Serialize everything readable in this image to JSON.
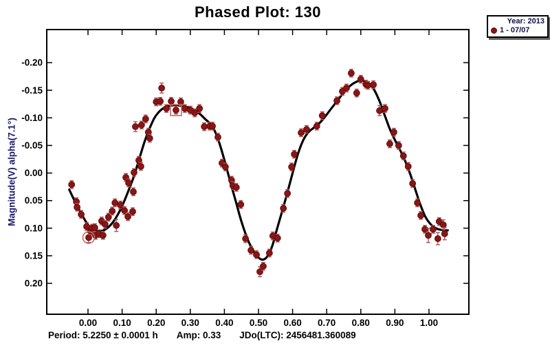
{
  "title": "Phased Plot: 130",
  "legend": {
    "year_label": "Year: 2013",
    "session_label": "1 - 07/07",
    "marker_color": "#8b1515"
  },
  "stats": {
    "period": "Period: 5.2250 ± 0.0001 h",
    "amp": "Amp: 0.33",
    "jdo": "JDo(LTC): 2456481.360089"
  },
  "colors": {
    "point_fill": "#8b1515",
    "point_edge": "#5f0b0b",
    "errorbar": "#a85454",
    "curve": "#000000",
    "frame": "#000000",
    "axis_title_navy": "#191970",
    "marker_annotation": "#c46a6a"
  },
  "chart_data": {
    "type": "scatter",
    "title": "Phased Plot: 130",
    "xlabel": "",
    "ylabel": "Magnitude(V) alpha(7.1°)",
    "x_ticks": [
      "0.00",
      "0.10",
      "0.20",
      "0.30",
      "0.40",
      "0.50",
      "0.60",
      "0.70",
      "0.80",
      "0.90",
      "1.00"
    ],
    "y_ticks": [
      "-0.20",
      "-0.15",
      "-0.10",
      "-0.05",
      "0.00",
      "0.05",
      "0.10",
      "0.15",
      "0.20"
    ],
    "xlim": [
      -0.121,
      1.117
    ],
    "ylim": [
      0.256,
      -0.26
    ],
    "y_axis_inverted": true,
    "grid": false,
    "legend_position": "top-right",
    "series": [
      {
        "name": "1 - 07/07",
        "year": "2013",
        "points_format": [
          "phase",
          "magnitude",
          "error"
        ],
        "points": [
          [
            -0.048,
            0.021,
            0.007
          ],
          [
            -0.034,
            0.052,
            0.007
          ],
          [
            -0.032,
            0.062,
            0.007
          ],
          [
            -0.02,
            0.075,
            0.007
          ],
          [
            -0.004,
            0.097,
            0.007
          ],
          [
            0.002,
            0.117,
            0.009
          ],
          [
            0.008,
            0.105,
            0.007
          ],
          [
            0.012,
            0.1,
            0.007
          ],
          [
            0.02,
            0.099,
            0.007
          ],
          [
            0.022,
            0.113,
            0.007
          ],
          [
            0.032,
            0.11,
            0.007
          ],
          [
            0.04,
            0.087,
            0.007
          ],
          [
            0.044,
            0.113,
            0.007
          ],
          [
            0.05,
            0.093,
            0.007
          ],
          [
            0.06,
            0.08,
            0.007
          ],
          [
            0.071,
            0.069,
            0.007
          ],
          [
            0.079,
            0.054,
            0.007
          ],
          [
            0.083,
            0.095,
            0.011
          ],
          [
            0.095,
            0.058,
            0.007
          ],
          [
            0.107,
            0.068,
            0.007
          ],
          [
            0.111,
            0.008,
            0.007
          ],
          [
            0.117,
            0.079,
            0.007
          ],
          [
            0.119,
            0.018,
            0.007
          ],
          [
            0.131,
            0.07,
            0.007
          ],
          [
            0.133,
            0.034,
            0.007
          ],
          [
            0.135,
            -0.001,
            0.007
          ],
          [
            0.139,
            -0.084,
            0.009
          ],
          [
            0.149,
            -0.023,
            0.007
          ],
          [
            0.155,
            -0.012,
            0.007
          ],
          [
            0.157,
            -0.087,
            0.007
          ],
          [
            0.169,
            -0.098,
            0.007
          ],
          [
            0.177,
            -0.074,
            0.007
          ],
          [
            0.181,
            -0.063,
            0.007
          ],
          [
            0.2,
            -0.129,
            0.007
          ],
          [
            0.212,
            -0.13,
            0.007
          ],
          [
            0.216,
            -0.154,
            0.009
          ],
          [
            0.23,
            -0.117,
            0.007
          ],
          [
            0.244,
            -0.13,
            0.007
          ],
          [
            0.258,
            -0.114,
            0.007
          ],
          [
            0.272,
            -0.129,
            0.007
          ],
          [
            0.284,
            -0.117,
            0.007
          ],
          [
            0.3,
            -0.114,
            0.007
          ],
          [
            0.313,
            -0.109,
            0.007
          ],
          [
            0.327,
            -0.117,
            0.007
          ],
          [
            0.341,
            -0.084,
            0.007
          ],
          [
            0.357,
            -0.085,
            0.007
          ],
          [
            0.365,
            -0.085,
            0.007
          ],
          [
            0.381,
            -0.065,
            0.007
          ],
          [
            0.393,
            -0.018,
            0.007
          ],
          [
            0.403,
            -0.011,
            0.007
          ],
          [
            0.421,
            0.013,
            0.007
          ],
          [
            0.425,
            0.023,
            0.007
          ],
          [
            0.435,
            0.026,
            0.007
          ],
          [
            0.448,
            0.057,
            0.007
          ],
          [
            0.462,
            0.119,
            0.007
          ],
          [
            0.478,
            0.14,
            0.007
          ],
          [
            0.494,
            0.148,
            0.007
          ],
          [
            0.504,
            0.179,
            0.009
          ],
          [
            0.514,
            0.169,
            0.007
          ],
          [
            0.532,
            0.145,
            0.007
          ],
          [
            0.542,
            0.114,
            0.007
          ],
          [
            0.556,
            0.118,
            0.007
          ],
          [
            0.573,
            0.064,
            0.007
          ],
          [
            0.585,
            0.037,
            0.007
          ],
          [
            0.597,
            -0.011,
            0.007
          ],
          [
            0.605,
            -0.034,
            0.007
          ],
          [
            0.625,
            -0.073,
            0.007
          ],
          [
            0.641,
            -0.079,
            0.007
          ],
          [
            0.671,
            -0.085,
            0.007
          ],
          [
            0.687,
            -0.104,
            0.007
          ],
          [
            0.73,
            -0.131,
            0.007
          ],
          [
            0.746,
            -0.148,
            0.007
          ],
          [
            0.758,
            -0.154,
            0.007
          ],
          [
            0.772,
            -0.181,
            0.007
          ],
          [
            0.788,
            -0.145,
            0.007
          ],
          [
            0.8,
            -0.17,
            0.007
          ],
          [
            0.815,
            -0.161,
            0.007
          ],
          [
            0.821,
            -0.159,
            0.007
          ],
          [
            0.837,
            -0.16,
            0.007
          ],
          [
            0.855,
            -0.113,
            0.009
          ],
          [
            0.871,
            -0.117,
            0.007
          ],
          [
            0.885,
            -0.053,
            0.007
          ],
          [
            0.897,
            -0.074,
            0.007
          ],
          [
            0.911,
            -0.05,
            0.007
          ],
          [
            0.925,
            -0.031,
            0.007
          ],
          [
            0.939,
            -0.012,
            0.007
          ],
          [
            0.952,
            0.019,
            0.007
          ],
          [
            0.966,
            0.054,
            0.007
          ],
          [
            0.976,
            0.077,
            0.007
          ],
          [
            0.988,
            0.102,
            0.007
          ],
          [
            0.998,
            0.113,
            0.013
          ],
          [
            1.012,
            0.102,
            0.007
          ],
          [
            1.026,
            0.119,
            0.011
          ],
          [
            1.03,
            0.088,
            0.007
          ],
          [
            1.042,
            0.094,
            0.009
          ],
          [
            1.046,
            0.11,
            0.011
          ]
        ]
      }
    ],
    "fit_curve": [
      [
        -0.055,
        0.03
      ],
      [
        -0.03,
        0.062
      ],
      [
        0.0,
        0.094
      ],
      [
        0.02,
        0.103
      ],
      [
        0.04,
        0.105
      ],
      [
        0.06,
        0.098
      ],
      [
        0.08,
        0.083
      ],
      [
        0.1,
        0.06
      ],
      [
        0.12,
        0.03
      ],
      [
        0.135,
        0.005
      ],
      [
        0.15,
        -0.025
      ],
      [
        0.165,
        -0.055
      ],
      [
        0.18,
        -0.08
      ],
      [
        0.195,
        -0.1
      ],
      [
        0.21,
        -0.112
      ],
      [
        0.225,
        -0.119
      ],
      [
        0.24,
        -0.122
      ],
      [
        0.255,
        -0.123
      ],
      [
        0.27,
        -0.122
      ],
      [
        0.285,
        -0.12
      ],
      [
        0.3,
        -0.118
      ],
      [
        0.315,
        -0.113
      ],
      [
        0.33,
        -0.106
      ],
      [
        0.345,
        -0.097
      ],
      [
        0.36,
        -0.088
      ],
      [
        0.375,
        -0.072
      ],
      [
        0.39,
        -0.045
      ],
      [
        0.405,
        -0.012
      ],
      [
        0.42,
        0.022
      ],
      [
        0.435,
        0.055
      ],
      [
        0.45,
        0.088
      ],
      [
        0.465,
        0.115
      ],
      [
        0.48,
        0.136
      ],
      [
        0.495,
        0.15
      ],
      [
        0.51,
        0.157
      ],
      [
        0.525,
        0.152
      ],
      [
        0.54,
        0.133
      ],
      [
        0.555,
        0.1
      ],
      [
        0.57,
        0.068
      ],
      [
        0.585,
        0.035
      ],
      [
        0.6,
        0.0
      ],
      [
        0.615,
        -0.033
      ],
      [
        0.63,
        -0.058
      ],
      [
        0.645,
        -0.073
      ],
      [
        0.66,
        -0.081
      ],
      [
        0.675,
        -0.088
      ],
      [
        0.69,
        -0.098
      ],
      [
        0.705,
        -0.11
      ],
      [
        0.72,
        -0.122
      ],
      [
        0.735,
        -0.134
      ],
      [
        0.75,
        -0.146
      ],
      [
        0.765,
        -0.156
      ],
      [
        0.78,
        -0.163
      ],
      [
        0.795,
        -0.167
      ],
      [
        0.81,
        -0.167
      ],
      [
        0.825,
        -0.162
      ],
      [
        0.84,
        -0.15
      ],
      [
        0.855,
        -0.13
      ],
      [
        0.87,
        -0.105
      ],
      [
        0.885,
        -0.08
      ],
      [
        0.9,
        -0.06
      ],
      [
        0.915,
        -0.042
      ],
      [
        0.93,
        -0.022
      ],
      [
        0.945,
        0.002
      ],
      [
        0.96,
        0.03
      ],
      [
        0.975,
        0.058
      ],
      [
        0.99,
        0.08
      ],
      [
        1.005,
        0.093
      ],
      [
        1.02,
        0.1
      ],
      [
        1.035,
        0.103
      ],
      [
        1.055,
        0.104
      ]
    ],
    "annotations": {
      "circled_point": {
        "phase": 0.002,
        "magnitude": 0.117
      },
      "squared_point": {
        "phase": 0.258,
        "magnitude": -0.114
      }
    }
  }
}
